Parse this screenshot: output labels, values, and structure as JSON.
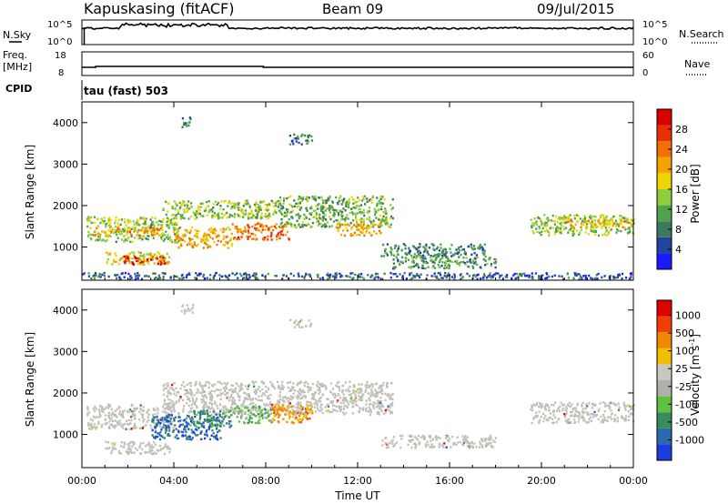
{
  "header": {
    "station": "Kapuskasing (fitACF)",
    "beam": "Beam 09",
    "date": "09/Jul/2015"
  },
  "status_panels": {
    "nsky_label": "N.Sky",
    "nsky_ticks": [
      "10^5",
      "10^0"
    ],
    "nsearch_label": "N.Search",
    "nsearch_ticks": [
      "10^5",
      "10^0"
    ],
    "freq_label_line1": "Freq.",
    "freq_label_line2": "[MHz]",
    "freq_ticks": [
      "18",
      "8"
    ],
    "nave_label": "Nave",
    "nave_ticks": [
      "60",
      "0"
    ],
    "cpid_label": "CPID",
    "cpid_text": "tau (fast) 503"
  },
  "colors": {
    "power_scale": [
      "#1a1aff",
      "#22449c",
      "#3c7a5c",
      "#4fa34a",
      "#8fce3a",
      "#f0d400",
      "#f5a300",
      "#f07000",
      "#e83000",
      "#d80000"
    ],
    "velocity_scale": [
      "#1a3ce0",
      "#2a6ab0",
      "#3a8a5a",
      "#60c040",
      "#b0b0a8",
      "#c8c8c0",
      "#f0c000",
      "#f08800",
      "#f04000",
      "#e00000"
    ],
    "ground_scatter": "#c0c0b8"
  },
  "chart_data": [
    {
      "type": "heatmap",
      "name": "power",
      "xlabel": "",
      "ylabel": "Slant Range [km]",
      "ylim": [
        200,
        4500
      ],
      "yticks": [
        "1000",
        "2000",
        "3000",
        "4000"
      ],
      "colorbar_label": "Power [dB]",
      "colorbar_ticks": [
        "4",
        "8",
        "12",
        "16",
        "20",
        "24",
        "28"
      ],
      "colorbar_range": [
        0,
        32
      ],
      "regions": [
        {
          "t0": 0.2,
          "t1": 4.2,
          "r0": 1150,
          "r1": 1750,
          "level": 14
        },
        {
          "t0": 0.5,
          "t1": 3.5,
          "r0": 1300,
          "r1": 1500,
          "level": 22
        },
        {
          "t0": 1.0,
          "t1": 3.8,
          "r0": 600,
          "r1": 900,
          "level": 18
        },
        {
          "t0": 1.8,
          "t1": 3.6,
          "r0": 600,
          "r1": 800,
          "level": 28
        },
        {
          "t0": 3.5,
          "t1": 8.5,
          "r0": 1700,
          "r1": 2150,
          "level": 14
        },
        {
          "t0": 4.0,
          "t1": 6.5,
          "r0": 1000,
          "r1": 1500,
          "level": 20
        },
        {
          "t0": 6.5,
          "t1": 9.0,
          "r0": 1200,
          "r1": 1600,
          "level": 24
        },
        {
          "t0": 8.5,
          "t1": 13.5,
          "r0": 1500,
          "r1": 2250,
          "level": 12
        },
        {
          "t0": 11.0,
          "t1": 13.0,
          "r0": 1300,
          "r1": 1600,
          "level": 20
        },
        {
          "t0": 13.0,
          "t1": 17.5,
          "r0": 800,
          "r1": 1100,
          "level": 8
        },
        {
          "t0": 13.5,
          "t1": 18.0,
          "r0": 500,
          "r1": 800,
          "level": 10
        },
        {
          "t0": 19.5,
          "t1": 24.0,
          "r0": 1300,
          "r1": 1800,
          "level": 14
        },
        {
          "t0": 21.0,
          "t1": 24.0,
          "r0": 1500,
          "r1": 1700,
          "level": 20
        },
        {
          "t0": 9.0,
          "t1": 10.0,
          "r0": 3500,
          "r1": 3750,
          "level": 8
        },
        {
          "t0": 4.3,
          "t1": 4.8,
          "r0": 3900,
          "r1": 4150,
          "level": 10
        },
        {
          "t0": 0.0,
          "t1": 24.0,
          "r0": 250,
          "r1": 400,
          "level": 6
        }
      ]
    },
    {
      "type": "heatmap",
      "name": "velocity",
      "xlabel": "Time UT",
      "ylabel": "Slant Range [km]",
      "ylim": [
        200,
        4500
      ],
      "yticks": [
        "1000",
        "2000",
        "3000",
        "4000"
      ],
      "xticks": [
        "00:00",
        "04:00",
        "08:00",
        "12:00",
        "16:00",
        "20:00",
        "00:00"
      ],
      "xlim": [
        0,
        24
      ],
      "colorbar_label": "Velocity [m s",
      "colorbar_label_sup": "-1",
      "colorbar_label_end": "]",
      "colorbar_ticks": [
        "1000",
        "500",
        "100",
        "25",
        "-25",
        "-100",
        "-500",
        "-1000"
      ],
      "regions": [
        {
          "t0": 0.2,
          "t1": 4.0,
          "r0": 1150,
          "r1": 1750,
          "kind": "ground"
        },
        {
          "t0": 3.5,
          "t1": 13.5,
          "r0": 1500,
          "r1": 2300,
          "kind": "ground"
        },
        {
          "t0": 3.0,
          "t1": 6.0,
          "r0": 900,
          "r1": 1500,
          "level": 1
        },
        {
          "t0": 4.5,
          "t1": 6.5,
          "r0": 1200,
          "r1": 1600,
          "level": 2
        },
        {
          "t0": 6.5,
          "t1": 8.2,
          "r0": 1300,
          "r1": 1700,
          "level": 3
        },
        {
          "t0": 8.2,
          "t1": 10.0,
          "r0": 1300,
          "r1": 1750,
          "level": 7
        },
        {
          "t0": 1.0,
          "t1": 3.8,
          "r0": 550,
          "r1": 850,
          "kind": "ground"
        },
        {
          "t0": 13.0,
          "t1": 18.0,
          "r0": 700,
          "r1": 1000,
          "kind": "ground"
        },
        {
          "t0": 19.5,
          "t1": 24.0,
          "r0": 1300,
          "r1": 1800,
          "kind": "ground"
        },
        {
          "t0": 9.0,
          "t1": 10.0,
          "r0": 3600,
          "r1": 3800,
          "kind": "ground"
        },
        {
          "t0": 4.3,
          "t1": 4.8,
          "r0": 3900,
          "r1": 4150,
          "kind": "ground"
        }
      ]
    }
  ]
}
